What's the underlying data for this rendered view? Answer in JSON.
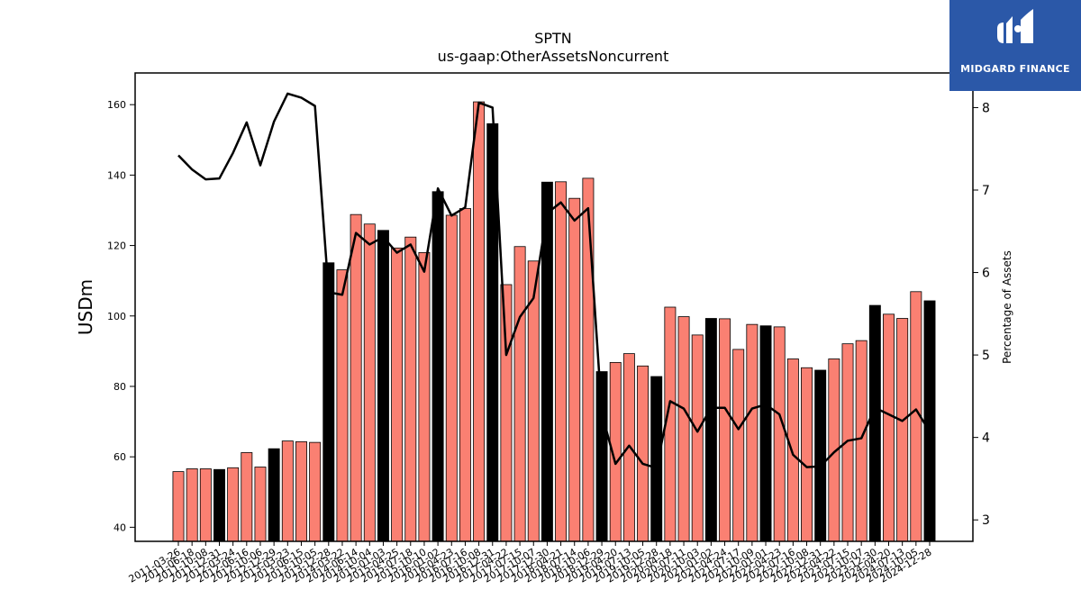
{
  "chart_data": {
    "type": "bar",
    "title": "SPTN",
    "subtitle": "us-gaap:OtherAssetsNoncurrent",
    "ylabel": "USDm",
    "y2label": "Percentage of Assets",
    "ylim": [
      36,
      169
    ],
    "y2lim": [
      2.74,
      8.42
    ],
    "yticks": [
      40,
      60,
      80,
      100,
      120,
      140,
      160
    ],
    "y2ticks": [
      3,
      4,
      5,
      6,
      7,
      8
    ],
    "colors": {
      "bar": "#fa8072",
      "bar_highlight": "#000000",
      "line": "#000000"
    },
    "categories": [
      "2011-03-26",
      "2011-06-18",
      "2011-10-08",
      "2011-12-31",
      "2012-03-24",
      "2012-06-16",
      "2012-10-06",
      "2012-12-29",
      "2013-03-23",
      "2013-06-15",
      "2013-10-05",
      "2013-12-28",
      "2014-03-22",
      "2014-06-14",
      "2014-10-04",
      "2015-01-03",
      "2015-04-25",
      "2015-07-18",
      "2015-10-10",
      "2016-01-02",
      "2016-04-23",
      "2016-07-16",
      "2016-10-08",
      "2016-12-31",
      "2017-04-22",
      "2017-07-15",
      "2017-10-07",
      "2017-12-30",
      "2018-04-21",
      "2018-07-14",
      "2018-10-06",
      "2018-12-29",
      "2019-04-20",
      "2019-07-13",
      "2019-10-05",
      "2019-12-28",
      "2020-04-18",
      "2020-07-11",
      "2020-10-03",
      "2021-01-02",
      "2021-04-24",
      "2021-07-17",
      "2021-10-09",
      "2022-01-01",
      "2022-04-23",
      "2022-07-16",
      "2022-10-08",
      "2022-12-31",
      "2023-04-22",
      "2023-07-15",
      "2023-10-07",
      "2023-12-30",
      "2024-04-20",
      "2024-07-13",
      "2024-10-05",
      "2024-12-28"
    ],
    "tick_labels": [
      "2011-03-26",
      "2011-06-18",
      "2011-10-08",
      "2011-12-31",
      "2012-03-24",
      "2012-06-16",
      "2012-10-06",
      "2012-12-29",
      "2013-03-23",
      "2013-06-15",
      "2013-10-05",
      "2013-12-28",
      "2014-03-22",
      "2014-06-14",
      "2014-10-04",
      "2015-01-03",
      "2015-04-25",
      "2015-07-18",
      "2015-10-10",
      "2016-01-02",
      "2016-04-23",
      "2016-07-16",
      "2016-10-08",
      "2016-12-31",
      "2017-04-22",
      "2017-07-15",
      "2017-10-07",
      "2017-12-30",
      "2018-04-21",
      "2018-07-14",
      "2018-10-06",
      "2018-12-29",
      "2019-04-20",
      "2019-07-13",
      "2019-10-05",
      "2019-12-28",
      "2020-04-18",
      "2020-07-11",
      "2020-10-03",
      "2021-01-02",
      "2021-04-24",
      "2021-07-17",
      "2021-10-09",
      "2022-01-01",
      "2022-04-23",
      "2022-07-16",
      "2022-10-08",
      "2022-12-31",
      "2023-04-22",
      "2023-07-15",
      "2023-10-07",
      "2023-12-30",
      "2024-04-20",
      "2024-07-13",
      "2024-10-05",
      "2024-12-28"
    ],
    "series": [
      {
        "type": "bar",
        "axis": "left",
        "values": [
          55.8,
          56.6,
          56.6,
          56.4,
          56.9,
          61.2,
          57.1,
          62.3,
          64.5,
          64.3,
          64.1,
          115.1,
          113.1,
          128.8,
          126.1,
          124.3,
          119.3,
          122.4,
          118.0,
          135.3,
          128.6,
          130.5,
          160.8,
          154.6,
          108.9,
          119.7,
          115.6,
          138.0,
          138.1,
          133.4,
          139.1,
          84.2,
          86.8,
          89.3,
          85.8,
          82.8,
          102.5,
          99.8,
          94.6,
          99.3,
          99.2,
          90.5,
          97.6,
          97.2,
          96.9,
          87.8,
          85.3,
          84.6,
          87.8,
          92.1,
          93.0,
          103.0,
          100.5,
          99.3,
          106.9,
          104.3
        ],
        "highlight": [
          false,
          false,
          false,
          true,
          false,
          false,
          false,
          true,
          false,
          false,
          false,
          true,
          false,
          false,
          false,
          true,
          false,
          false,
          false,
          true,
          false,
          false,
          false,
          true,
          false,
          false,
          false,
          true,
          false,
          false,
          false,
          true,
          false,
          false,
          false,
          true,
          false,
          false,
          false,
          true,
          false,
          false,
          false,
          true,
          false,
          false,
          false,
          true,
          false,
          false,
          false,
          true,
          false,
          false,
          false,
          true
        ]
      },
      {
        "type": "line",
        "axis": "right",
        "values": [
          7.42,
          7.25,
          7.13,
          7.14,
          7.45,
          7.82,
          7.3,
          7.83,
          8.17,
          8.12,
          8.02,
          5.76,
          5.73,
          6.48,
          6.34,
          6.43,
          6.24,
          6.34,
          6.01,
          7.02,
          6.69,
          6.79,
          8.06,
          8.0,
          5.0,
          5.46,
          5.69,
          6.72,
          6.85,
          6.63,
          6.78,
          4.29,
          3.68,
          3.9,
          3.68,
          3.63,
          4.44,
          4.35,
          4.07,
          4.36,
          4.36,
          4.1,
          4.35,
          4.4,
          4.28,
          3.79,
          3.64,
          3.65,
          3.82,
          3.96,
          3.99,
          4.36,
          4.28,
          4.2,
          4.34,
          4.07
        ]
      }
    ]
  },
  "logo": {
    "text": "MIDGARD FINANCE"
  }
}
